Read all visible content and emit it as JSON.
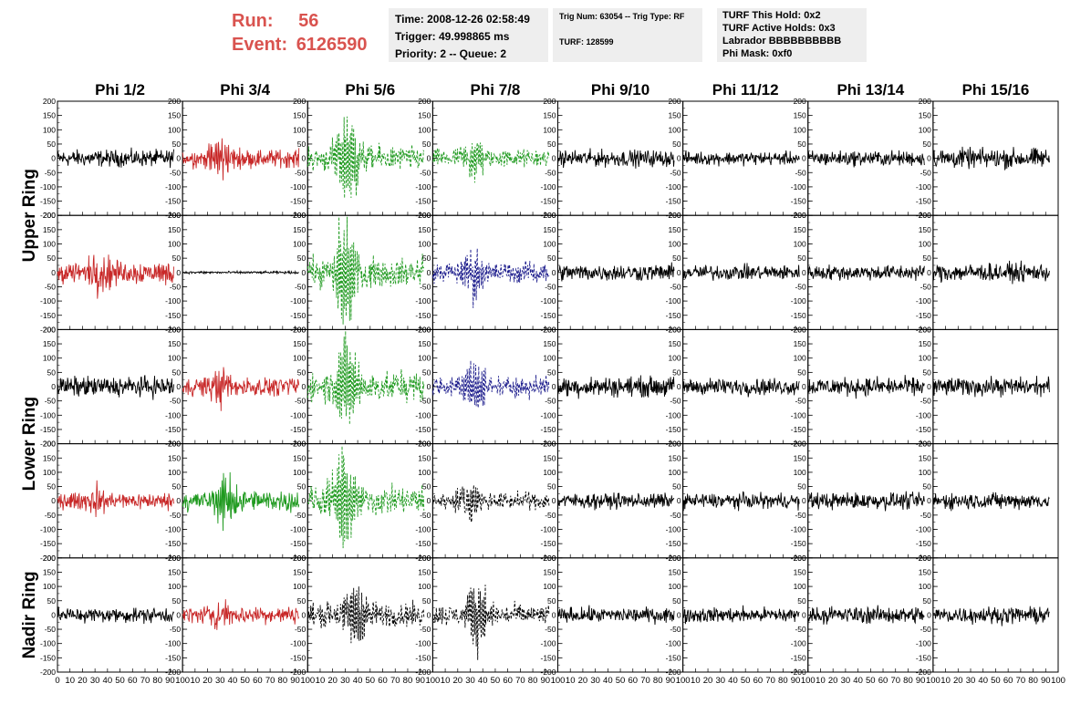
{
  "header": {
    "run_label": "Run:",
    "run_value": "56",
    "event_label": "Event:",
    "event_value": "6126590"
  },
  "info": {
    "time": "Time: 2008-12-26 02:58:49",
    "trigger": "Trigger: 49.998865 ms",
    "priority": "Priority: 2 -- Queue: 2",
    "trig": "Trig Num: 63054 -- Trig Type: RF",
    "turf": "TURF: 128599",
    "turf_hold": "TURF This Hold: 0x2",
    "turf_active": "TURF Active Holds: 0x3",
    "labrador": "Labrador BBBBBBBBBB",
    "phi_mask": "Phi Mask: 0xf0"
  },
  "colors": {
    "black": "#000000",
    "red": "#c82828",
    "green": "#1f9a1f",
    "blue": "#1c1c8c"
  },
  "chart_data": {
    "type": "line",
    "columns": [
      "Phi 1/2",
      "Phi 3/4",
      "Phi 5/6",
      "Phi 7/8",
      "Phi 9/10",
      "Phi 11/12",
      "Phi 13/14",
      "Phi 15/16"
    ],
    "ring_labels": [
      {
        "text": "Upper Ring",
        "span_rows": [
          0,
          1
        ]
      },
      {
        "text": "Lower Ring",
        "span_rows": [
          2,
          3
        ]
      },
      {
        "text": "Nadir Ring",
        "span_rows": [
          4,
          4
        ]
      }
    ],
    "ylim": [
      -200,
      200
    ],
    "yticks": [
      -200,
      -150,
      -100,
      -50,
      0,
      50,
      100,
      150,
      200
    ],
    "xlim": [
      0,
      100
    ],
    "xticks": [
      0,
      10,
      20,
      30,
      40,
      50,
      60,
      70,
      80,
      90,
      100
    ],
    "grid": false,
    "panels": [
      [
        {
          "color": "black",
          "dashed": false,
          "amp": 20,
          "peak": 0,
          "center": 40,
          "x_end": 93
        },
        {
          "color": "red",
          "dashed": false,
          "amp": 22,
          "peak": 50,
          "center": 30,
          "x_end": 93
        },
        {
          "color": "green",
          "dashed": true,
          "amp": 30,
          "peak": 150,
          "center": 32,
          "x_end": 93
        },
        {
          "color": "green",
          "dashed": true,
          "amp": 22,
          "peak": 60,
          "center": 33,
          "x_end": 93
        },
        {
          "color": "black",
          "dashed": false,
          "amp": 20,
          "peak": 0,
          "center": 40,
          "x_end": 93
        },
        {
          "color": "black",
          "dashed": false,
          "amp": 16,
          "peak": 0,
          "center": 40,
          "x_end": 93
        },
        {
          "color": "black",
          "dashed": false,
          "amp": 18,
          "peak": 0,
          "center": 40,
          "x_end": 93
        },
        {
          "color": "black",
          "dashed": false,
          "amp": 24,
          "peak": 0,
          "center": 40,
          "x_end": 93
        }
      ],
      [
        {
          "color": "red",
          "dashed": false,
          "amp": 28,
          "peak": 30,
          "center": 35,
          "x_end": 93
        },
        {
          "color": "black",
          "dashed": false,
          "amp": 3,
          "peak": 0,
          "center": 40,
          "x_end": 93
        },
        {
          "color": "green",
          "dashed": true,
          "amp": 35,
          "peak": 190,
          "center": 30,
          "x_end": 93
        },
        {
          "color": "blue",
          "dashed": true,
          "amp": 25,
          "peak": 60,
          "center": 33,
          "x_end": 93
        },
        {
          "color": "black",
          "dashed": false,
          "amp": 20,
          "peak": 0,
          "center": 40,
          "x_end": 93
        },
        {
          "color": "black",
          "dashed": false,
          "amp": 18,
          "peak": 0,
          "center": 40,
          "x_end": 93
        },
        {
          "color": "black",
          "dashed": false,
          "amp": 18,
          "peak": 0,
          "center": 40,
          "x_end": 93
        },
        {
          "color": "black",
          "dashed": false,
          "amp": 22,
          "peak": 0,
          "center": 40,
          "x_end": 93
        }
      ],
      [
        {
          "color": "black",
          "dashed": false,
          "amp": 24,
          "peak": 0,
          "center": 40,
          "x_end": 93
        },
        {
          "color": "red",
          "dashed": false,
          "amp": 22,
          "peak": 35,
          "center": 30,
          "x_end": 93
        },
        {
          "color": "green",
          "dashed": true,
          "amp": 35,
          "peak": 155,
          "center": 32,
          "x_end": 93
        },
        {
          "color": "blue",
          "dashed": true,
          "amp": 25,
          "peak": 95,
          "center": 33,
          "x_end": 93
        },
        {
          "color": "black",
          "dashed": false,
          "amp": 24,
          "peak": 0,
          "center": 40,
          "x_end": 93
        },
        {
          "color": "black",
          "dashed": false,
          "amp": 20,
          "peak": 0,
          "center": 40,
          "x_end": 93
        },
        {
          "color": "black",
          "dashed": false,
          "amp": 22,
          "peak": 0,
          "center": 40,
          "x_end": 93
        },
        {
          "color": "black",
          "dashed": false,
          "amp": 22,
          "peak": 0,
          "center": 40,
          "x_end": 93
        }
      ],
      [
        {
          "color": "red",
          "dashed": false,
          "amp": 20,
          "peak": 20,
          "center": 30,
          "x_end": 93
        },
        {
          "color": "green",
          "dashed": false,
          "amp": 25,
          "peak": 80,
          "center": 35,
          "x_end": 93
        },
        {
          "color": "green",
          "dashed": true,
          "amp": 35,
          "peak": 175,
          "center": 28,
          "x_end": 93
        },
        {
          "color": "black",
          "dashed": true,
          "amp": 20,
          "peak": 40,
          "center": 30,
          "x_end": 93
        },
        {
          "color": "black",
          "dashed": false,
          "amp": 18,
          "peak": 0,
          "center": 40,
          "x_end": 93
        },
        {
          "color": "black",
          "dashed": false,
          "amp": 18,
          "peak": 0,
          "center": 40,
          "x_end": 93
        },
        {
          "color": "black",
          "dashed": false,
          "amp": 20,
          "peak": 0,
          "center": 40,
          "x_end": 93
        },
        {
          "color": "black",
          "dashed": false,
          "amp": 20,
          "peak": 0,
          "center": 40,
          "x_end": 93
        }
      ],
      [
        {
          "color": "black",
          "dashed": false,
          "amp": 18,
          "peak": 0,
          "center": 40,
          "x_end": 93
        },
        {
          "color": "red",
          "dashed": false,
          "amp": 20,
          "peak": 20,
          "center": 30,
          "x_end": 93
        },
        {
          "color": "black",
          "dashed": true,
          "amp": 30,
          "peak": 120,
          "center": 38,
          "x_end": 93
        },
        {
          "color": "black",
          "dashed": true,
          "amp": 25,
          "peak": 110,
          "center": 36,
          "x_end": 93
        },
        {
          "color": "black",
          "dashed": false,
          "amp": 18,
          "peak": 0,
          "center": 40,
          "x_end": 93
        },
        {
          "color": "black",
          "dashed": false,
          "amp": 18,
          "peak": 0,
          "center": 40,
          "x_end": 93
        },
        {
          "color": "black",
          "dashed": false,
          "amp": 20,
          "peak": 0,
          "center": 40,
          "x_end": 93
        },
        {
          "color": "black",
          "dashed": false,
          "amp": 20,
          "peak": 0,
          "center": 40,
          "x_end": 93
        }
      ]
    ]
  }
}
